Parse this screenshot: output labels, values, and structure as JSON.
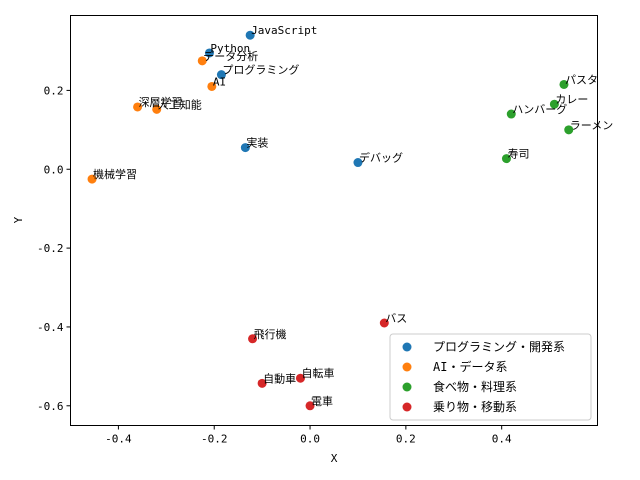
{
  "chart_data": {
    "type": "scatter",
    "title": "",
    "xlabel": "X",
    "ylabel": "Y",
    "xlim": [
      -0.5,
      0.6
    ],
    "ylim": [
      -0.65,
      0.39
    ],
    "xticks": [
      "-0.4",
      "-0.2",
      "0.0",
      "0.2",
      "0.4"
    ],
    "xtick_values": [
      -0.4,
      -0.2,
      0.0,
      0.2,
      0.4
    ],
    "yticks": [
      "-0.6",
      "-0.4",
      "-0.2",
      "0.0",
      "0.2"
    ],
    "ytick_values": [
      -0.6,
      -0.4,
      -0.2,
      0.0,
      0.2
    ],
    "grid": false,
    "legend_position": "lower-right",
    "series": [
      {
        "name": "プログラミング・開発系",
        "color": "#1f77b4",
        "points": [
          {
            "label": "JavaScript",
            "x": -0.125,
            "y": 0.34
          },
          {
            "label": "Python",
            "x": -0.21,
            "y": 0.295
          },
          {
            "label": "プログラミング",
            "x": -0.185,
            "y": 0.24
          },
          {
            "label": "実装",
            "x": -0.135,
            "y": 0.055
          },
          {
            "label": "デバッグ",
            "x": 0.1,
            "y": 0.017
          }
        ]
      },
      {
        "name": "AI・データ系",
        "color": "#ff7f0e",
        "points": [
          {
            "label": "データ分析",
            "x": -0.225,
            "y": 0.275
          },
          {
            "label": "AI",
            "x": -0.205,
            "y": 0.21
          },
          {
            "label": "深層学習",
            "x": -0.36,
            "y": 0.158
          },
          {
            "label": "人工知能",
            "x": -0.32,
            "y": 0.152
          },
          {
            "label": "機械学習",
            "x": -0.455,
            "y": -0.025
          }
        ]
      },
      {
        "name": "食べ物・料理系",
        "color": "#2ca02c",
        "points": [
          {
            "label": "パスタ",
            "x": 0.53,
            "y": 0.215
          },
          {
            "label": "カレー",
            "x": 0.51,
            "y": 0.165
          },
          {
            "label": "ハンバーグ",
            "x": 0.42,
            "y": 0.14
          },
          {
            "label": "ラーメン",
            "x": 0.54,
            "y": 0.1
          },
          {
            "label": "寿司",
            "x": 0.41,
            "y": 0.027
          }
        ]
      },
      {
        "name": "乗り物・移動系",
        "color": "#d62728",
        "points": [
          {
            "label": "バス",
            "x": 0.155,
            "y": -0.39
          },
          {
            "label": "飛行機",
            "x": -0.12,
            "y": -0.43
          },
          {
            "label": "自転車",
            "x": -0.02,
            "y": -0.53
          },
          {
            "label": "自動車",
            "x": -0.1,
            "y": -0.543
          },
          {
            "label": "電車",
            "x": 0.0,
            "y": -0.6
          }
        ]
      }
    ]
  }
}
